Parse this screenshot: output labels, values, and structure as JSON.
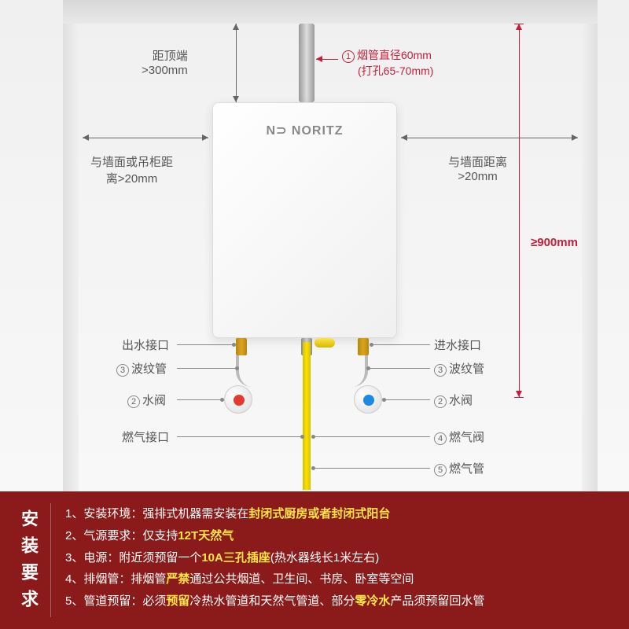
{
  "brand": "N⊃ NORITZ",
  "dims": {
    "top": "距顶端\n>300mm",
    "pipe": "烟管直径60mm",
    "pipe_sub": "(打孔65-70mm)",
    "left": "与墙面或吊柜距\n离>20mm",
    "right": "与墙面距离\n>20mm",
    "height": "≥900mm"
  },
  "labels": {
    "outlet": "出水接口",
    "inlet": "进水接口",
    "corrugated": "波纹管",
    "valve": "水阀",
    "gas_conn": "燃气接口",
    "gas_valve": "燃气阀",
    "gas_pipe": "燃气管"
  },
  "colors": {
    "hot": "#e53935",
    "cold": "#1e88e5",
    "gas": "#ffe000",
    "red": "#c41e3a"
  },
  "req_title": "安装要求",
  "req": [
    {
      "n": "1、",
      "l": "安装环境：",
      "t": "强排式机器需安装在",
      "b": "封闭式厨房或者封闭式阳台"
    },
    {
      "n": "2、",
      "l": "气源要求：",
      "t": "仅支持",
      "b": "12T天然气"
    },
    {
      "n": "3、",
      "l": "电源：",
      "t": "附近须预留一个",
      "b": "10A三孔插座",
      "t2": "(热水器线长1米左右)"
    },
    {
      "n": "4、",
      "l": "排烟管：",
      "t": "排烟管",
      "b": "严禁",
      "t2": "通过公共烟道、卫生间、书房、卧室等空间"
    },
    {
      "n": "5、",
      "l": "管道预留：",
      "t": "必须",
      "b": "预留",
      "t2": "冷热水管道和天然气管道、部分",
      "b2": "零冷水",
      "t3": "产品须预留回水管"
    }
  ]
}
